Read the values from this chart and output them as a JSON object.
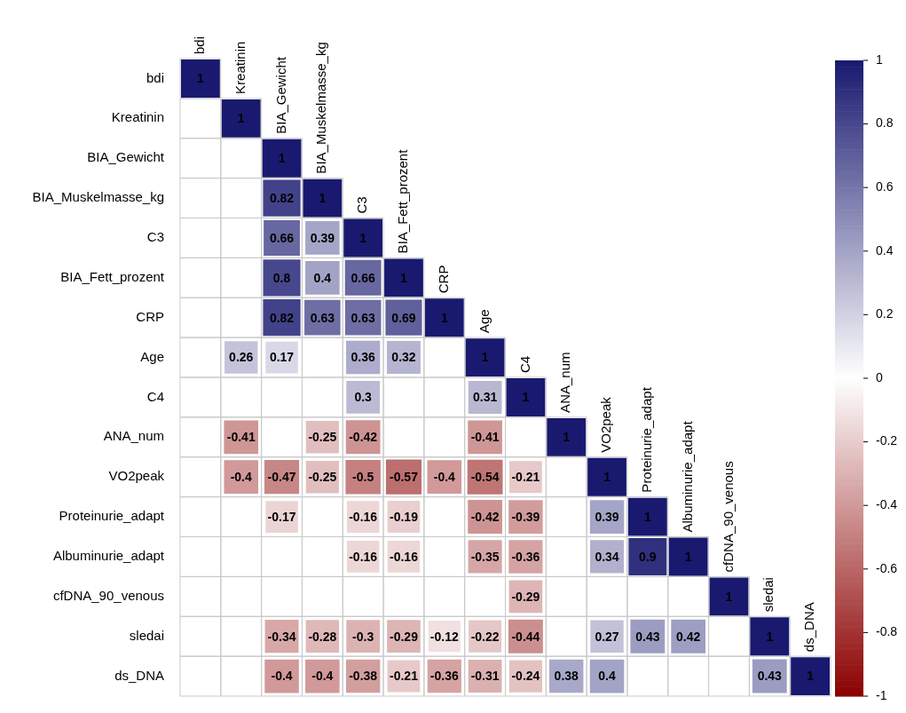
{
  "chart_data": {
    "type": "heatmap",
    "categories": [
      "bdi",
      "Kreatinin",
      "BIA_Gewicht",
      "BIA_Muskelmasse_kg",
      "C3",
      "BIA_Fett_prozent",
      "CRP",
      "Age",
      "C4",
      "ANA_num",
      "VO2peak",
      "Proteinurie_adapt",
      "Albuminurie_adapt",
      "cfDNA_90_venous",
      "sledai",
      "ds_DNA"
    ],
    "y_categories": [
      "bdi",
      "Kreatinin",
      "BIA_Gewicht",
      "BIA_Muskelmasse_kg",
      "C3",
      "BIA_Fett_prozent",
      "CRP",
      "Age",
      "C4",
      "ANA_num",
      "VO2peak",
      "Proteinurie_adapt",
      "Albuminurie_adapt",
      "cfDNA_90_venous",
      "sledai",
      "ds_DNA"
    ],
    "cells": [
      [
        1,
        null,
        null,
        null,
        null,
        null,
        null,
        null,
        null,
        null,
        null,
        null,
        null,
        null,
        null,
        null
      ],
      [
        null,
        1,
        null,
        null,
        null,
        null,
        null,
        null,
        null,
        null,
        null,
        null,
        null,
        null,
        null,
        null
      ],
      [
        null,
        null,
        1,
        null,
        null,
        null,
        null,
        null,
        null,
        null,
        null,
        null,
        null,
        null,
        null,
        null
      ],
      [
        null,
        null,
        0.82,
        1,
        null,
        null,
        null,
        null,
        null,
        null,
        null,
        null,
        null,
        null,
        null,
        null
      ],
      [
        null,
        null,
        0.66,
        0.39,
        1,
        null,
        null,
        null,
        null,
        null,
        null,
        null,
        null,
        null,
        null,
        null
      ],
      [
        null,
        null,
        0.8,
        0.4,
        0.66,
        1,
        null,
        null,
        null,
        null,
        null,
        null,
        null,
        null,
        null,
        null
      ],
      [
        null,
        null,
        0.82,
        0.63,
        0.63,
        0.69,
        1,
        null,
        null,
        null,
        null,
        null,
        null,
        null,
        null,
        null
      ],
      [
        null,
        0.26,
        0.17,
        null,
        0.36,
        0.32,
        null,
        1,
        null,
        null,
        null,
        null,
        null,
        null,
        null,
        null
      ],
      [
        null,
        null,
        null,
        null,
        0.3,
        null,
        null,
        0.31,
        1,
        null,
        null,
        null,
        null,
        null,
        null,
        null
      ],
      [
        null,
        -0.41,
        null,
        -0.25,
        -0.42,
        null,
        null,
        -0.41,
        null,
        1,
        null,
        null,
        null,
        null,
        null,
        null
      ],
      [
        null,
        -0.4,
        -0.47,
        -0.25,
        -0.5,
        -0.57,
        -0.4,
        -0.54,
        -0.21,
        null,
        1,
        null,
        null,
        null,
        null,
        null
      ],
      [
        null,
        null,
        -0.17,
        null,
        -0.16,
        -0.19,
        null,
        -0.42,
        -0.39,
        null,
        0.39,
        1,
        null,
        null,
        null,
        null
      ],
      [
        null,
        null,
        null,
        null,
        -0.16,
        -0.16,
        null,
        -0.35,
        -0.36,
        null,
        0.34,
        0.9,
        1,
        null,
        null,
        null
      ],
      [
        null,
        null,
        null,
        null,
        null,
        null,
        null,
        null,
        -0.29,
        null,
        null,
        null,
        null,
        1,
        null,
        null
      ],
      [
        null,
        null,
        -0.34,
        -0.28,
        -0.3,
        -0.29,
        -0.12,
        -0.22,
        -0.44,
        null,
        0.27,
        0.43,
        0.42,
        null,
        1,
        null
      ],
      [
        null,
        null,
        -0.4,
        -0.4,
        -0.38,
        -0.21,
        -0.36,
        -0.31,
        -0.24,
        0.38,
        0.4,
        null,
        null,
        null,
        0.43,
        1
      ]
    ],
    "clim": [
      -1,
      1
    ],
    "cticks": [
      -1,
      -0.8,
      -0.6,
      -0.4,
      -0.2,
      0,
      0.2,
      0.4,
      0.6,
      0.8,
      1
    ],
    "data_labels": true,
    "legend": false
  }
}
